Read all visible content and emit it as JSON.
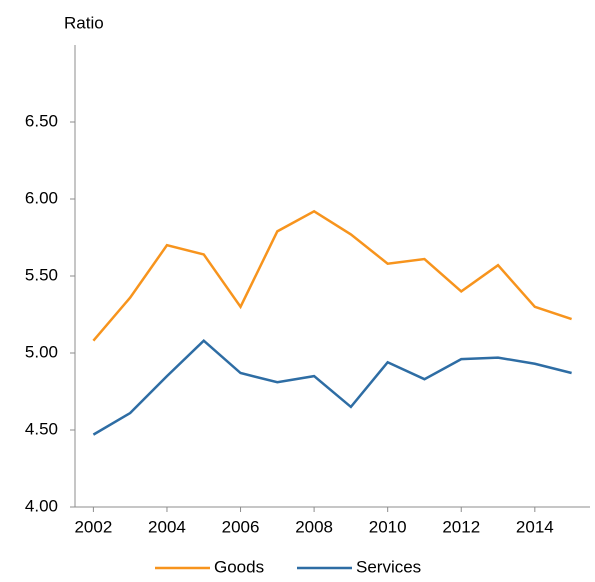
{
  "chart_data": {
    "type": "line",
    "y_axis_label": "Ratio",
    "x": [
      2002,
      2003,
      2004,
      2005,
      2006,
      2007,
      2008,
      2009,
      2010,
      2011,
      2012,
      2013,
      2014,
      2015
    ],
    "series": [
      {
        "name": "Goods",
        "color": "#f7941d",
        "values": [
          5.08,
          5.36,
          5.7,
          5.64,
          5.3,
          5.79,
          5.92,
          5.77,
          5.58,
          5.61,
          5.4,
          5.57,
          5.3,
          5.22
        ]
      },
      {
        "name": "Services",
        "color": "#2e6da4",
        "values": [
          4.47,
          4.61,
          4.85,
          5.08,
          4.87,
          4.81,
          4.85,
          4.65,
          4.94,
          4.83,
          4.96,
          4.97,
          4.93,
          4.87
        ]
      }
    ],
    "xlim": [
      2001.5,
      2015.5
    ],
    "xticks": [
      2002,
      2004,
      2006,
      2008,
      2010,
      2012,
      2014
    ],
    "ylim": [
      4,
      7
    ],
    "yticks": [
      {
        "value": 4,
        "label": "4.00"
      },
      {
        "value": 4.5,
        "label": "4.50"
      },
      {
        "value": 5,
        "label": "5.00"
      },
      {
        "value": 5.5,
        "label": "5.50"
      },
      {
        "value": 6,
        "label": "6.00"
      },
      {
        "value": 6.5,
        "label": "6.50"
      }
    ],
    "legend": "bottom"
  }
}
